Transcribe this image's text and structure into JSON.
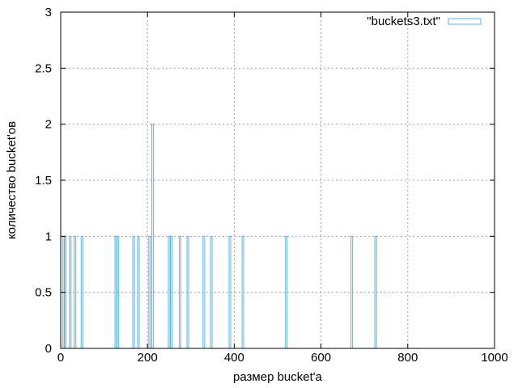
{
  "chart_data": {
    "type": "bar",
    "xlabel": "размер bucket'a",
    "ylabel": "количество bucket'ов",
    "xlim": [
      0,
      1000
    ],
    "ylim": [
      0,
      3
    ],
    "x_ticks": [
      0,
      200,
      400,
      600,
      800,
      1000
    ],
    "y_ticks": [
      0,
      0.5,
      1,
      1.5,
      2,
      2.5,
      3
    ],
    "x_tick_labels": [
      "0",
      "200",
      "400",
      "600",
      "800",
      "1000"
    ],
    "y_tick_labels": [
      "0",
      "0.5",
      "1",
      "1.5",
      "2",
      "2.5",
      "3"
    ],
    "grid": true,
    "legend_position": "top-right",
    "series": [
      {
        "name": "\"buckets3.txt\"",
        "color": "#56b4e9",
        "x": [
          7,
          10,
          22,
          33,
          49,
          127,
          132,
          168,
          179,
          205,
          212,
          250,
          255,
          275,
          293,
          330,
          347,
          390,
          420,
          520,
          671,
          726
        ],
        "values": [
          1,
          1,
          1,
          1,
          1,
          1,
          1,
          1,
          1,
          1,
          2,
          1,
          1,
          1,
          1,
          1,
          1,
          1,
          1,
          1,
          1,
          1
        ]
      }
    ]
  }
}
